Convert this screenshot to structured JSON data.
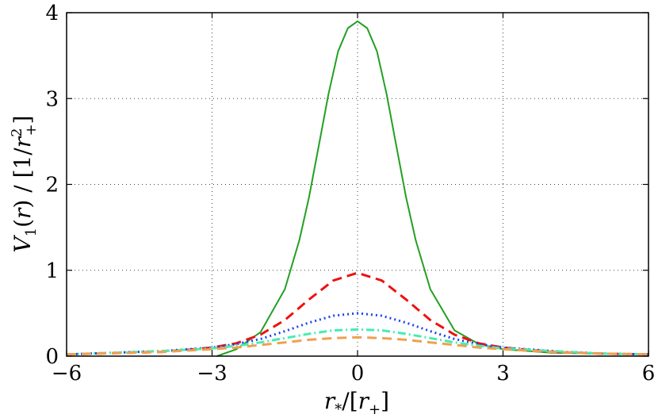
{
  "chart_data": {
    "type": "line",
    "title": "",
    "xlabel": "r_*/[r_+]",
    "ylabel": "V_1(r) / [1/r_+^2]",
    "xlim": [
      -6,
      6
    ],
    "ylim": [
      0,
      4
    ],
    "xticks": [
      -6,
      -3,
      0,
      3,
      6
    ],
    "yticks": [
      0,
      1,
      2,
      3,
      4
    ],
    "xtick_labels": [
      "−6",
      "−3",
      "0",
      "3",
      "6"
    ],
    "ytick_labels": [
      "0",
      "1",
      "2",
      "3",
      "4"
    ],
    "grid": true,
    "grid_style": "dotted",
    "legend": "none",
    "series": [
      {
        "color": "#22a022",
        "dash": "solid",
        "x": [
          -2.9,
          -2.5,
          -2.0,
          -1.5,
          -1.2,
          -1.0,
          -0.8,
          -0.6,
          -0.4,
          -0.2,
          0.0,
          0.2,
          0.4,
          0.6,
          0.8,
          1.0,
          1.2,
          1.5,
          2.0,
          2.5,
          3.0,
          4.0,
          5.0,
          6.0
        ],
        "y": [
          0.0,
          0.08,
          0.28,
          0.78,
          1.35,
          1.85,
          2.45,
          3.05,
          3.55,
          3.82,
          3.9,
          3.82,
          3.55,
          3.05,
          2.45,
          1.85,
          1.35,
          0.78,
          0.3,
          0.14,
          0.08,
          0.04,
          0.03,
          0.02
        ]
      },
      {
        "color": "#ee1111",
        "dash": "dashed",
        "x": [
          -6.0,
          -4.0,
          -3.0,
          -2.5,
          -2.0,
          -1.5,
          -1.0,
          -0.5,
          0.0,
          0.5,
          1.0,
          1.5,
          2.0,
          2.5,
          3.0,
          4.0,
          5.0,
          6.0
        ],
        "y": [
          0.02,
          0.05,
          0.1,
          0.15,
          0.25,
          0.42,
          0.66,
          0.88,
          0.97,
          0.88,
          0.66,
          0.42,
          0.25,
          0.15,
          0.1,
          0.05,
          0.03,
          0.02
        ]
      },
      {
        "color": "#2244ee",
        "dash": "dotted",
        "x": [
          -6.0,
          -4.0,
          -3.0,
          -2.5,
          -2.0,
          -1.5,
          -1.0,
          -0.5,
          0.0,
          0.5,
          1.0,
          1.5,
          2.0,
          2.5,
          3.0,
          4.0,
          5.0,
          6.0
        ],
        "y": [
          0.02,
          0.06,
          0.1,
          0.14,
          0.2,
          0.29,
          0.39,
          0.47,
          0.5,
          0.47,
          0.39,
          0.29,
          0.2,
          0.14,
          0.1,
          0.06,
          0.03,
          0.02
        ]
      },
      {
        "color": "#44eeb0",
        "dash": "dash-dot",
        "x": [
          -6.0,
          -4.0,
          -3.0,
          -2.5,
          -2.0,
          -1.5,
          -1.0,
          -0.5,
          0.0,
          0.5,
          1.0,
          1.5,
          2.0,
          2.5,
          3.0,
          4.0,
          5.0,
          6.0
        ],
        "y": [
          0.02,
          0.06,
          0.09,
          0.12,
          0.16,
          0.21,
          0.26,
          0.3,
          0.31,
          0.3,
          0.26,
          0.21,
          0.16,
          0.12,
          0.09,
          0.06,
          0.03,
          0.02
        ]
      },
      {
        "color": "#f0a050",
        "dash": "dashed",
        "x": [
          -6.0,
          -4.0,
          -3.0,
          -2.5,
          -2.0,
          -1.5,
          -1.0,
          -0.5,
          0.0,
          0.5,
          1.0,
          1.5,
          2.0,
          2.5,
          3.0,
          4.0,
          5.0,
          6.0
        ],
        "y": [
          0.02,
          0.05,
          0.08,
          0.1,
          0.13,
          0.16,
          0.19,
          0.21,
          0.22,
          0.21,
          0.19,
          0.16,
          0.13,
          0.1,
          0.08,
          0.05,
          0.03,
          0.02
        ]
      }
    ]
  }
}
